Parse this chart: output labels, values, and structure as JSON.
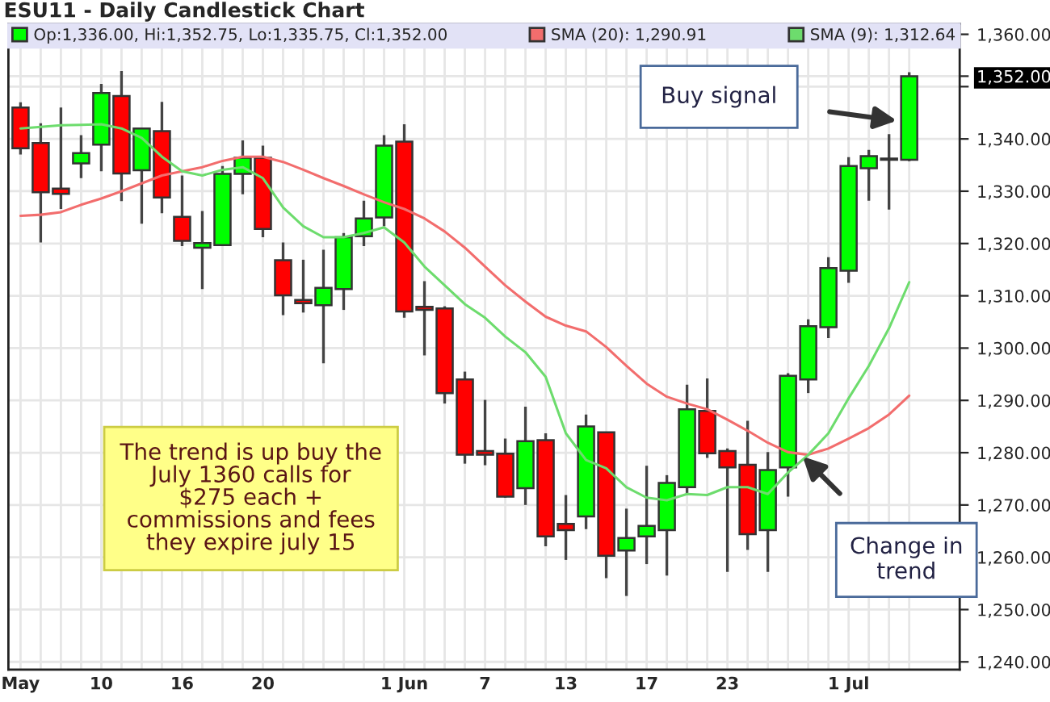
{
  "chart_data": {
    "type": "candlestick",
    "title": "ESU11 - Daily Candlestick Chart",
    "categories": [
      "May",
      null,
      null,
      null,
      "10",
      null,
      null,
      null,
      "16",
      null,
      null,
      null,
      "20",
      null,
      null,
      null,
      null,
      null,
      null,
      "1 Jun",
      null,
      null,
      null,
      "7",
      null,
      null,
      null,
      "13",
      null,
      null,
      null,
      "17",
      null,
      null,
      null,
      "23",
      null,
      null,
      null,
      null,
      null,
      "1 Jul",
      null,
      null,
      null
    ],
    "ohlc": [
      [
        1346,
        1347,
        1337,
        1338.2
      ],
      [
        1339.2,
        1343,
        1320.2,
        1329.8
      ],
      [
        1330.5,
        1346,
        1326.6,
        1329.5
      ],
      [
        1335.3,
        1340.7,
        1332.5,
        1337.3
      ],
      [
        1338.9,
        1350.5,
        1333.8,
        1348.8
      ],
      [
        1348.2,
        1353,
        1328.1,
        1333.4
      ],
      [
        1334,
        1342,
        1323.8,
        1342
      ],
      [
        1341.5,
        1347.1,
        1325.8,
        1328.8
      ],
      [
        1325.1,
        1333,
        1319.5,
        1320.5
      ],
      [
        1319.2,
        1326.2,
        1311.3,
        1320.1
      ],
      [
        1319.7,
        1334.8,
        1319.7,
        1333.3
      ],
      [
        1333.3,
        1339.7,
        1329.4,
        1336.4
      ],
      [
        1336.4,
        1338.7,
        1321.2,
        1322.8
      ],
      [
        1316.8,
        1320.2,
        1306.3,
        1310.1
      ],
      [
        1309.2,
        1316.9,
        1306.8,
        1308.6
      ],
      [
        1308.2,
        1318.8,
        1297.1,
        1311.5
      ],
      [
        1311.3,
        1322,
        1307.3,
        1321.2
      ],
      [
        1321.4,
        1328.2,
        1319.5,
        1324.8
      ],
      [
        1325,
        1340.7,
        1323.3,
        1338.7
      ],
      [
        1339.5,
        1342.8,
        1305.8,
        1307
      ],
      [
        1307.9,
        1312.8,
        1298.6,
        1307.3
      ],
      [
        1307.6,
        1308,
        1289.4,
        1291.4
      ],
      [
        1294,
        1295.5,
        1277.9,
        1279.6
      ],
      [
        1280.3,
        1290.1,
        1277.6,
        1279.6
      ],
      [
        1279.8,
        1282.7,
        1271.4,
        1271.6
      ],
      [
        1273.2,
        1288.8,
        1270,
        1282.2
      ],
      [
        1282.4,
        1283.7,
        1262.1,
        1264
      ],
      [
        1266.4,
        1271.9,
        1259.5,
        1265.2
      ],
      [
        1267.8,
        1287.3,
        1265.4,
        1285
      ],
      [
        1283.9,
        1283.9,
        1256,
        1260.3
      ],
      [
        1261.3,
        1269.3,
        1252.6,
        1263.7
      ],
      [
        1264,
        1277.5,
        1258.7,
        1266
      ],
      [
        1265.2,
        1275.7,
        1256.5,
        1274.2
      ],
      [
        1273.4,
        1293,
        1271.9,
        1288.3
      ],
      [
        1288,
        1294.2,
        1279,
        1279.9
      ],
      [
        1280.3,
        1280.8,
        1257.2,
        1277.2
      ],
      [
        1277.7,
        1286.1,
        1261.4,
        1264.4
      ],
      [
        1265.2,
        1280.1,
        1257.2,
        1276.7
      ],
      [
        1277.2,
        1295.2,
        1271.6,
        1294.7
      ],
      [
        1294,
        1305.5,
        1291.4,
        1304.2
      ],
      [
        1304,
        1317.4,
        1301.9,
        1315.3
      ],
      [
        1314.8,
        1336.5,
        1312.5,
        1334.8
      ],
      [
        1334.4,
        1337.9,
        1328.2,
        1336.7
      ],
      [
        1336,
        1340.9,
        1326.5,
        1336
      ],
      [
        1336,
        1352.75,
        1335.75,
        1352
      ]
    ],
    "colors": [
      "#ff0000",
      "#ff0000",
      "#ff0000",
      "#00ff00",
      "#00ff00",
      "#ff0000",
      "#00ff00",
      "#ff0000",
      "#ff0000",
      "#00ff00",
      "#00ff00",
      "#00ff00",
      "#ff0000",
      "#ff0000",
      "#ff0000",
      "#00ff00",
      "#00ff00",
      "#00ff00",
      "#00ff00",
      "#ff0000",
      "#ff0000",
      "#ff0000",
      "#ff0000",
      "#ff0000",
      "#ff0000",
      "#00ff00",
      "#ff0000",
      "#ff0000",
      "#00ff00",
      "#ff0000",
      "#00ff00",
      "#00ff00",
      "#00ff00",
      "#00ff00",
      "#ff0000",
      "#ff0000",
      "#ff0000",
      "#00ff00",
      "#00ff00",
      "#00ff00",
      "#00ff00",
      "#00ff00",
      "#00ff00",
      "#00ff00",
      "#00ff00"
    ],
    "series": [
      {
        "name": "SMA (20): 1,290.91",
        "type": "line",
        "color": "#f26d6d",
        "values": [
          1325.3,
          1325.5,
          1326,
          1327.4,
          1328.6,
          1330,
          1331.5,
          1333,
          1333.8,
          1334.6,
          1335.8,
          1336.6,
          1336.6,
          1335.6,
          1334.1,
          1332.5,
          1331,
          1329.4,
          1327.9,
          1326.6,
          1324.8,
          1322.3,
          1319.2,
          1315.6,
          1312,
          1308.9,
          1306,
          1304.3,
          1303.2,
          1300.2,
          1296.6,
          1293.2,
          1290.7,
          1289.4,
          1288.3,
          1286.3,
          1284.2,
          1281.9,
          1280.1,
          1279.6,
          1280.8,
          1282.7,
          1284.7,
          1287.3,
          1290.9
        ]
      },
      {
        "name": "SMA (9): 1,312.64",
        "type": "line",
        "color": "#6ddc6d",
        "values": [
          1342,
          1342.3,
          1342.6,
          1342.7,
          1342.8,
          1342,
          1340.2,
          1336.6,
          1333.8,
          1333,
          1334.1,
          1334.6,
          1332.5,
          1326.9,
          1323.3,
          1321.2,
          1321.2,
          1322,
          1323.1,
          1320.2,
          1315.6,
          1312,
          1308.4,
          1305.8,
          1302.2,
          1299.2,
          1294.5,
          1283.7,
          1278.6,
          1277,
          1273.4,
          1271.4,
          1270.9,
          1272.1,
          1271.9,
          1273.4,
          1273.4,
          1272.1,
          1276.2,
          1279.6,
          1283.7,
          1290.4,
          1296.6,
          1303.8,
          1312.6
        ]
      }
    ],
    "annotations": [
      "Op:1,336.00, Hi:1,352.75, Lo:1,335.75, Cl:1,352.00",
      "Buy signal",
      "Change in\ntrend",
      "The trend is up buy the\nJuly 1360 calls for\n$275 each +\ncommissions and fees\nthey expire july 15"
    ],
    "ylim": [
      1238.5,
      1362
    ],
    "yticks": [
      {
        "value": 1240,
        "label": "1,240.00"
      },
      {
        "value": 1250,
        "label": "1,250.00"
      },
      {
        "value": 1260,
        "label": "1,260.00"
      },
      {
        "value": 1270,
        "label": "1,270.00"
      },
      {
        "value": 1280,
        "label": "1,280.00"
      },
      {
        "value": 1290,
        "label": "1,290.00"
      },
      {
        "value": 1300,
        "label": "1,300.00"
      },
      {
        "value": 1310,
        "label": "1,310.00"
      },
      {
        "value": 1320,
        "label": "1,320.00"
      },
      {
        "value": 1330,
        "label": "1,330.00"
      },
      {
        "value": 1340,
        "label": "1,340.00"
      },
      {
        "value": 1350,
        "label": null
      },
      {
        "value": 1352,
        "label": "1,352.00"
      },
      {
        "value": 1360,
        "label": "1,360.00"
      }
    ],
    "grid": true,
    "legend": "top"
  }
}
